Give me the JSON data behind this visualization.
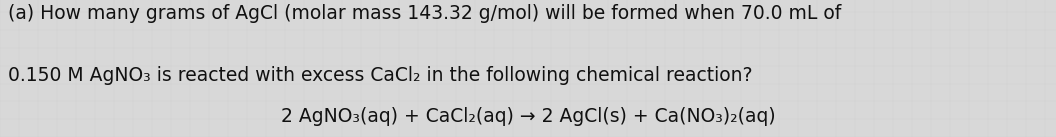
{
  "bg_color": "#d8d8d8",
  "text_color": "#111111",
  "line1": "(a) How many grams of AgCl (molar mass 143.32 g/mol) will be formed when 70.0 mL of",
  "line2": "0.150 M AgNO₃ is reacted with excess CaCl₂ in the following chemical reaction?",
  "equation": "2 AgNO₃(aq) + CaCl₂(aq) → 2 AgCl(s) + Ca(NO₃)₂(aq)",
  "fontsize_main": 13.5,
  "fontsize_eq": 13.5,
  "font_family": "DejaVu Sans"
}
